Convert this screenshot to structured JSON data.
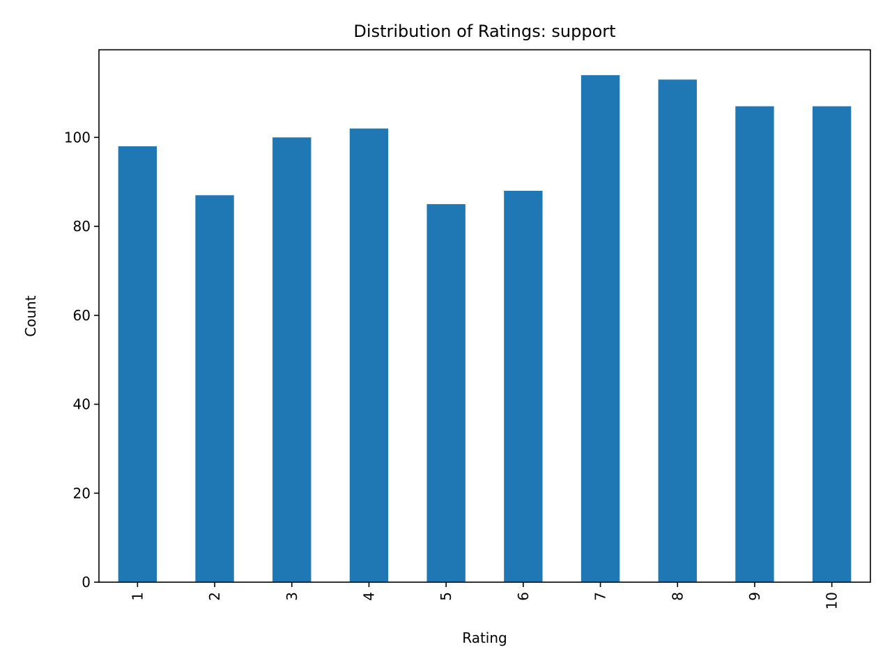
{
  "chart_data": {
    "type": "bar",
    "title": "Distribution of Ratings: support",
    "xlabel": "Rating",
    "ylabel": "Count",
    "categories": [
      "1",
      "2",
      "3",
      "4",
      "5",
      "6",
      "7",
      "8",
      "9",
      "10"
    ],
    "values": [
      98,
      87,
      100,
      102,
      85,
      88,
      114,
      113,
      107,
      107
    ],
    "ylim": [
      0,
      119.7
    ],
    "yticks": [
      0,
      20,
      40,
      60,
      80,
      100
    ],
    "bar_color": "#1f77b4",
    "grid": false,
    "legend": "none"
  }
}
